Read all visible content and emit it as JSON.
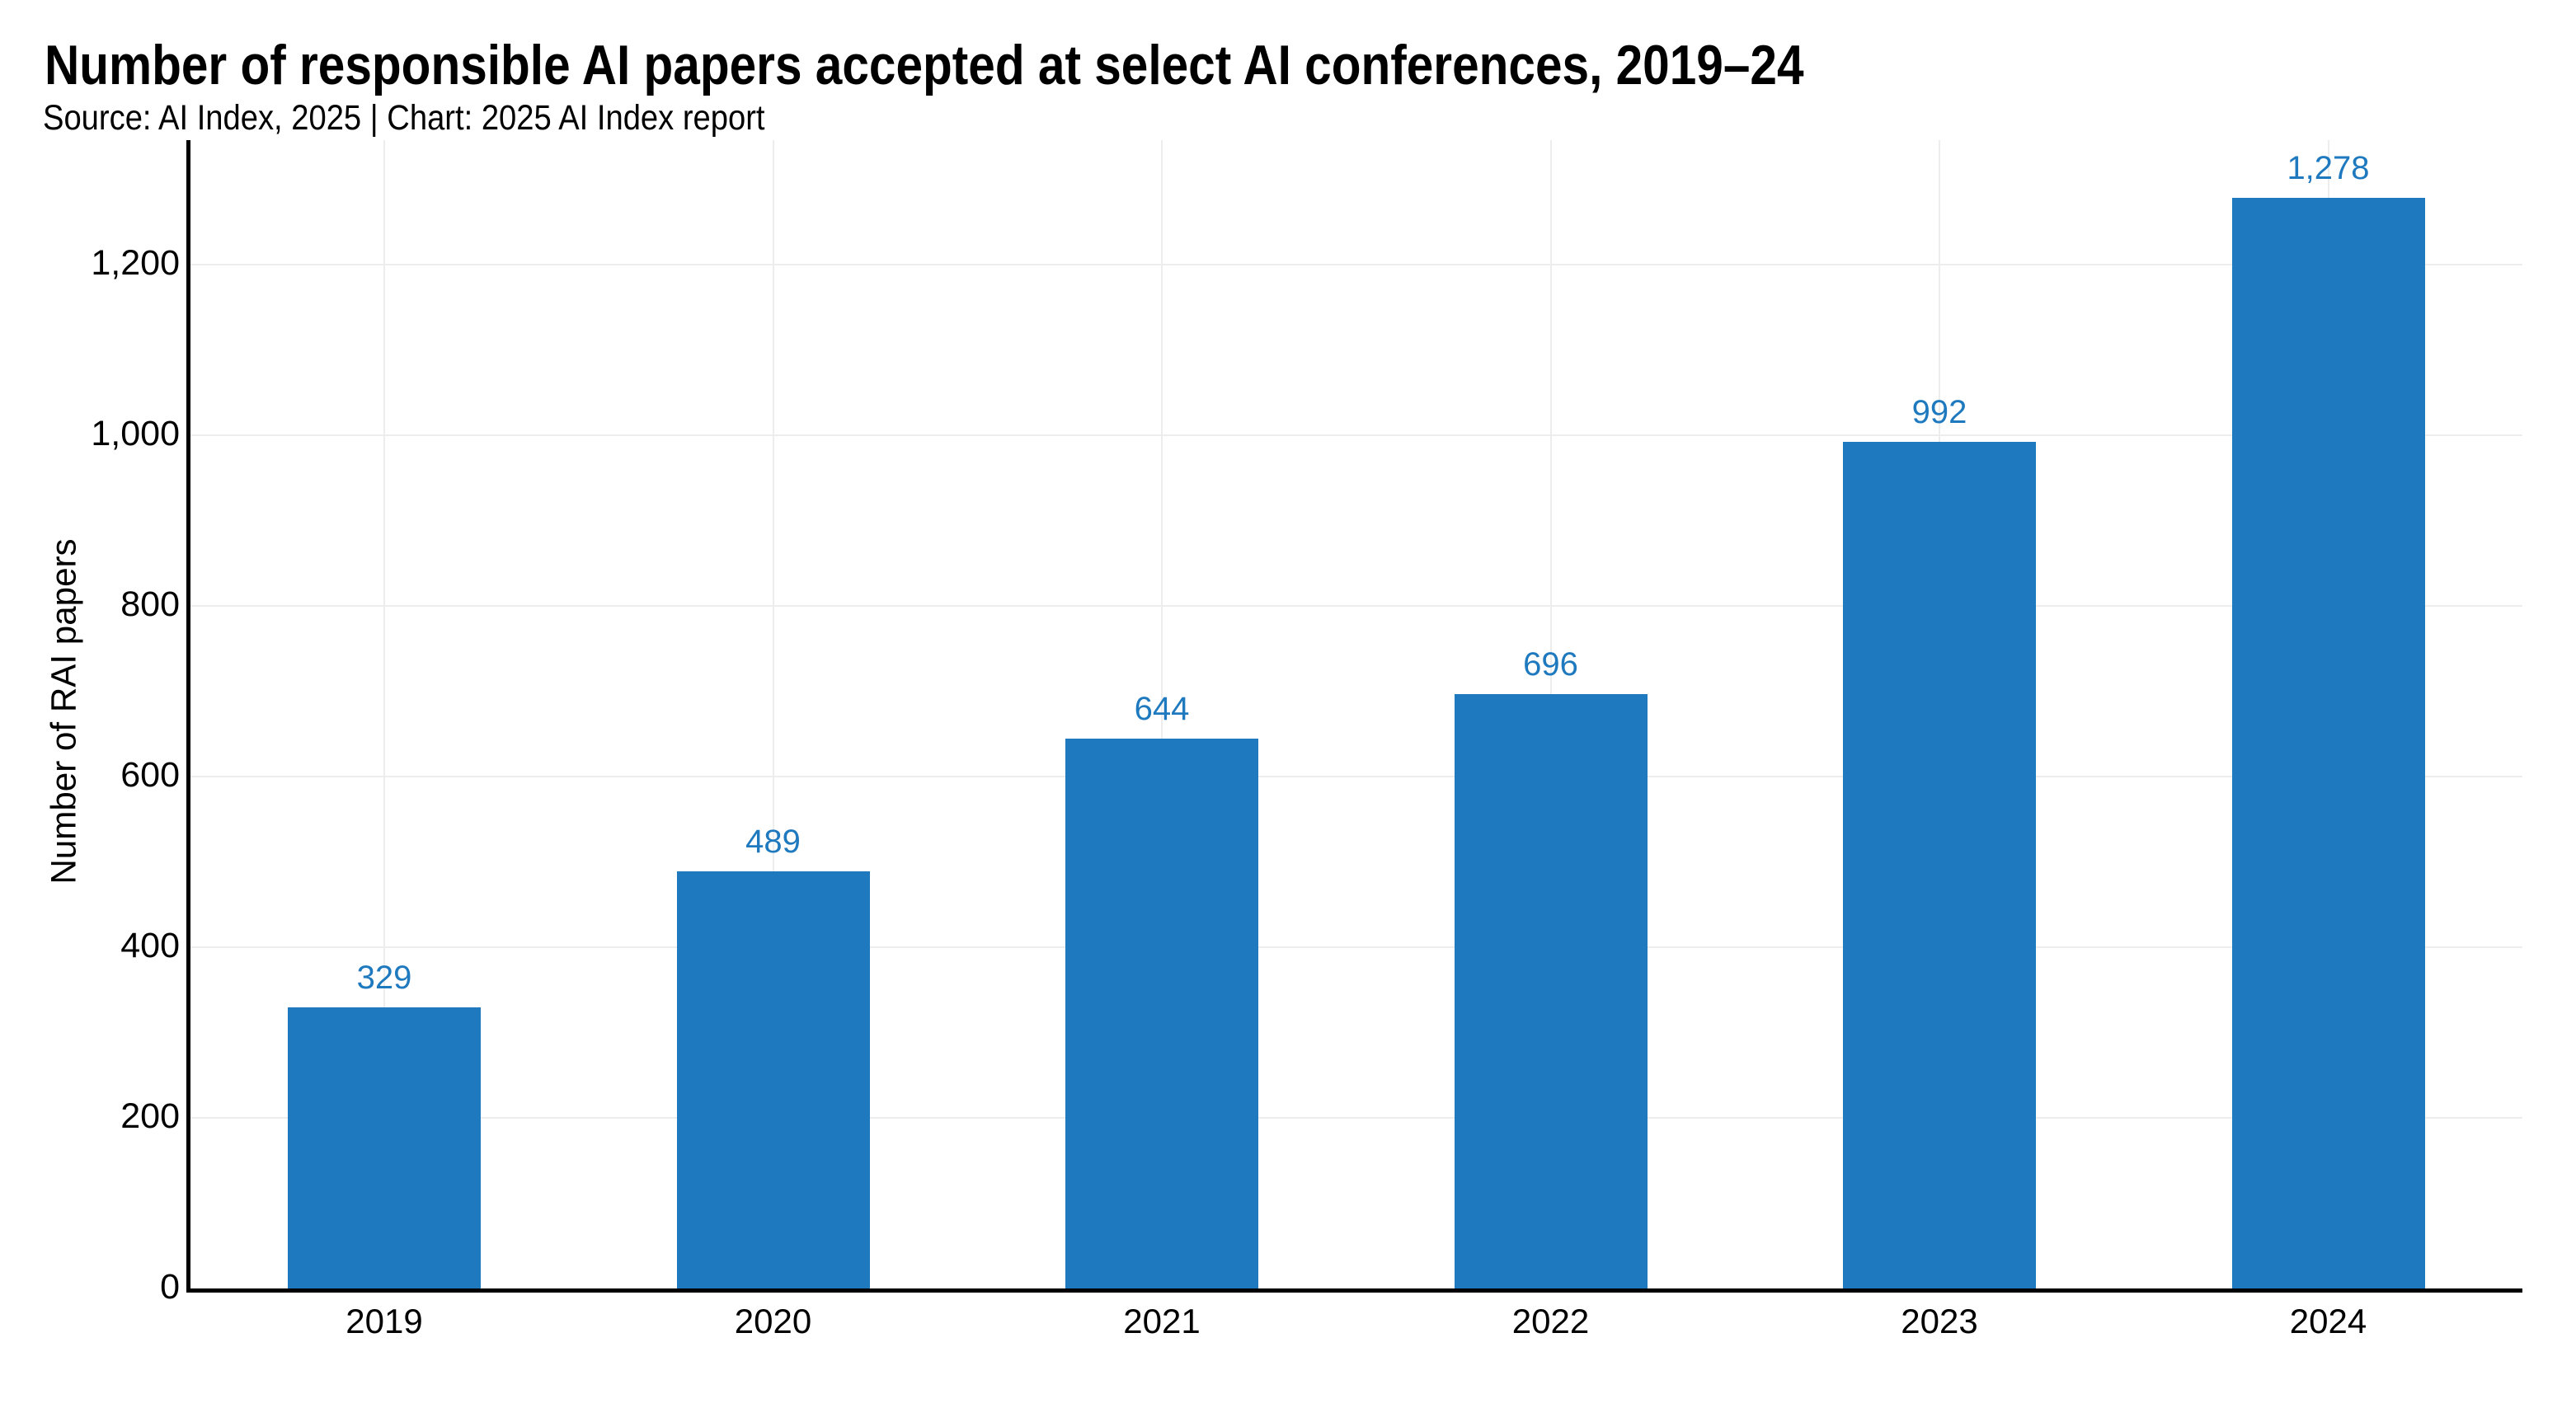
{
  "chart_data": {
    "type": "bar",
    "title": "Number of responsible AI papers accepted at select AI conferences, 2019–24",
    "subtitle": "Source: AI Index, 2025 | Chart: 2025 AI Index report",
    "xlabel": "",
    "ylabel": "Number of RAI papers",
    "categories": [
      "2019",
      "2020",
      "2021",
      "2022",
      "2023",
      "2024"
    ],
    "values": [
      329,
      489,
      644,
      696,
      992,
      1278
    ],
    "value_labels": [
      "329",
      "489",
      "644",
      "696",
      "992",
      "1,278"
    ],
    "ytick_values": [
      0,
      200,
      400,
      600,
      800,
      1000,
      1200
    ],
    "ytick_labels": [
      "0",
      "200",
      "400",
      "600",
      "800",
      "1,000",
      "1,200"
    ],
    "ylim": [
      0,
      1345
    ],
    "grid": "horizontal and vertical gridlines, light gray",
    "legend_position": "none",
    "colors": {
      "bar": "#1e79be",
      "value_label": "#1e79be",
      "axis": "#000000",
      "gridline": "#ededed",
      "text": "#000000",
      "background": "#ffffff"
    }
  }
}
